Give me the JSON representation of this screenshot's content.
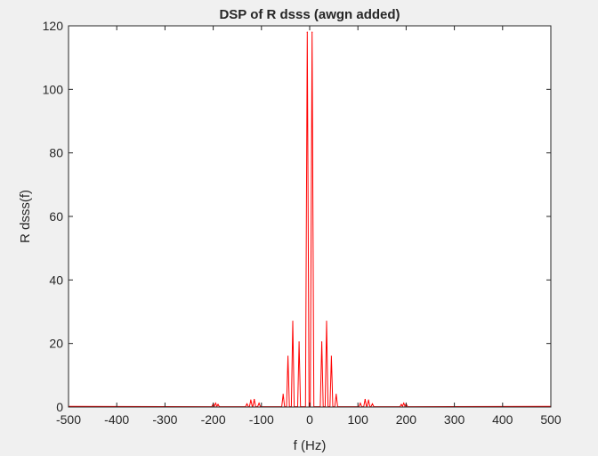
{
  "chart_data": {
    "type": "line",
    "title": "DSP of R dsss (awgn added)",
    "xlabel": "f (Hz)",
    "ylabel": "R dsss(f)",
    "xlim": [
      -500,
      500
    ],
    "ylim": [
      0,
      120
    ],
    "xticks": [
      -500,
      -400,
      -300,
      -200,
      -100,
      0,
      100,
      200,
      300,
      400,
      500
    ],
    "yticks": [
      0,
      20,
      40,
      60,
      80,
      100,
      120
    ],
    "grid": false,
    "series": [
      {
        "color": "#ff0000",
        "peaks": [
          {
            "x": -200,
            "y": 1.0
          },
          {
            "x": -195,
            "y": 1.2
          },
          {
            "x": -190,
            "y": 0.8
          },
          {
            "x": -130,
            "y": 1.0
          },
          {
            "x": -122,
            "y": 2.2
          },
          {
            "x": -115,
            "y": 2.4
          },
          {
            "x": -105,
            "y": 1.2
          },
          {
            "x": -55,
            "y": 4.0
          },
          {
            "x": -45,
            "y": 16.0
          },
          {
            "x": -35,
            "y": 27.0
          },
          {
            "x": -22,
            "y": 20.5
          },
          {
            "x": -5,
            "y": 118.0
          },
          {
            "x": 5,
            "y": 118.0
          },
          {
            "x": 25,
            "y": 20.5
          },
          {
            "x": 35,
            "y": 27.0
          },
          {
            "x": 45,
            "y": 16.0
          },
          {
            "x": 55,
            "y": 4.0
          },
          {
            "x": 105,
            "y": 1.2
          },
          {
            "x": 115,
            "y": 2.4
          },
          {
            "x": 122,
            "y": 2.2
          },
          {
            "x": 130,
            "y": 1.0
          },
          {
            "x": 190,
            "y": 0.8
          },
          {
            "x": 195,
            "y": 1.2
          },
          {
            "x": 200,
            "y": 1.0
          }
        ]
      }
    ]
  }
}
